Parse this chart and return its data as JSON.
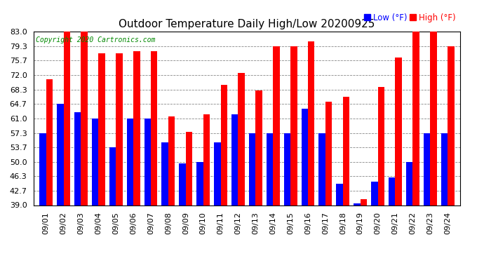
{
  "title": "Outdoor Temperature Daily High/Low 20200925",
  "copyright": "Copyright 2020 Cartronics.com",
  "legend_low": "Low",
  "legend_high": "High",
  "legend_unit": "(°F)",
  "ylim": [
    39.0,
    83.0
  ],
  "yticks": [
    39.0,
    42.7,
    46.3,
    50.0,
    53.7,
    57.3,
    61.0,
    64.7,
    68.3,
    72.0,
    75.7,
    79.3,
    83.0
  ],
  "categories": [
    "09/01",
    "09/02",
    "09/03",
    "09/04",
    "09/05",
    "09/06",
    "09/07",
    "09/08",
    "09/09",
    "09/10",
    "09/11",
    "09/12",
    "09/13",
    "09/14",
    "09/15",
    "09/16",
    "09/17",
    "09/18",
    "09/19",
    "09/20",
    "09/21",
    "09/22",
    "09/23",
    "09/24"
  ],
  "highs": [
    71.0,
    83.0,
    83.0,
    77.5,
    77.5,
    78.0,
    78.0,
    61.5,
    57.5,
    62.0,
    69.5,
    72.5,
    68.0,
    79.3,
    79.3,
    80.5,
    65.3,
    66.5,
    40.5,
    69.0,
    76.5,
    83.0,
    83.0,
    79.3
  ],
  "lows": [
    57.3,
    64.7,
    62.5,
    61.0,
    53.7,
    61.0,
    61.0,
    55.0,
    49.5,
    50.0,
    55.0,
    62.0,
    57.3,
    57.3,
    57.3,
    63.5,
    57.3,
    44.5,
    39.5,
    45.0,
    46.0,
    50.0,
    57.3,
    57.3
  ],
  "high_color": "#ff0000",
  "low_color": "#0000ff",
  "bg_color": "#ffffff",
  "grid_color": "#888888",
  "title_fontsize": 11,
  "tick_fontsize": 8,
  "bar_width": 0.38,
  "ymin": 39.0
}
